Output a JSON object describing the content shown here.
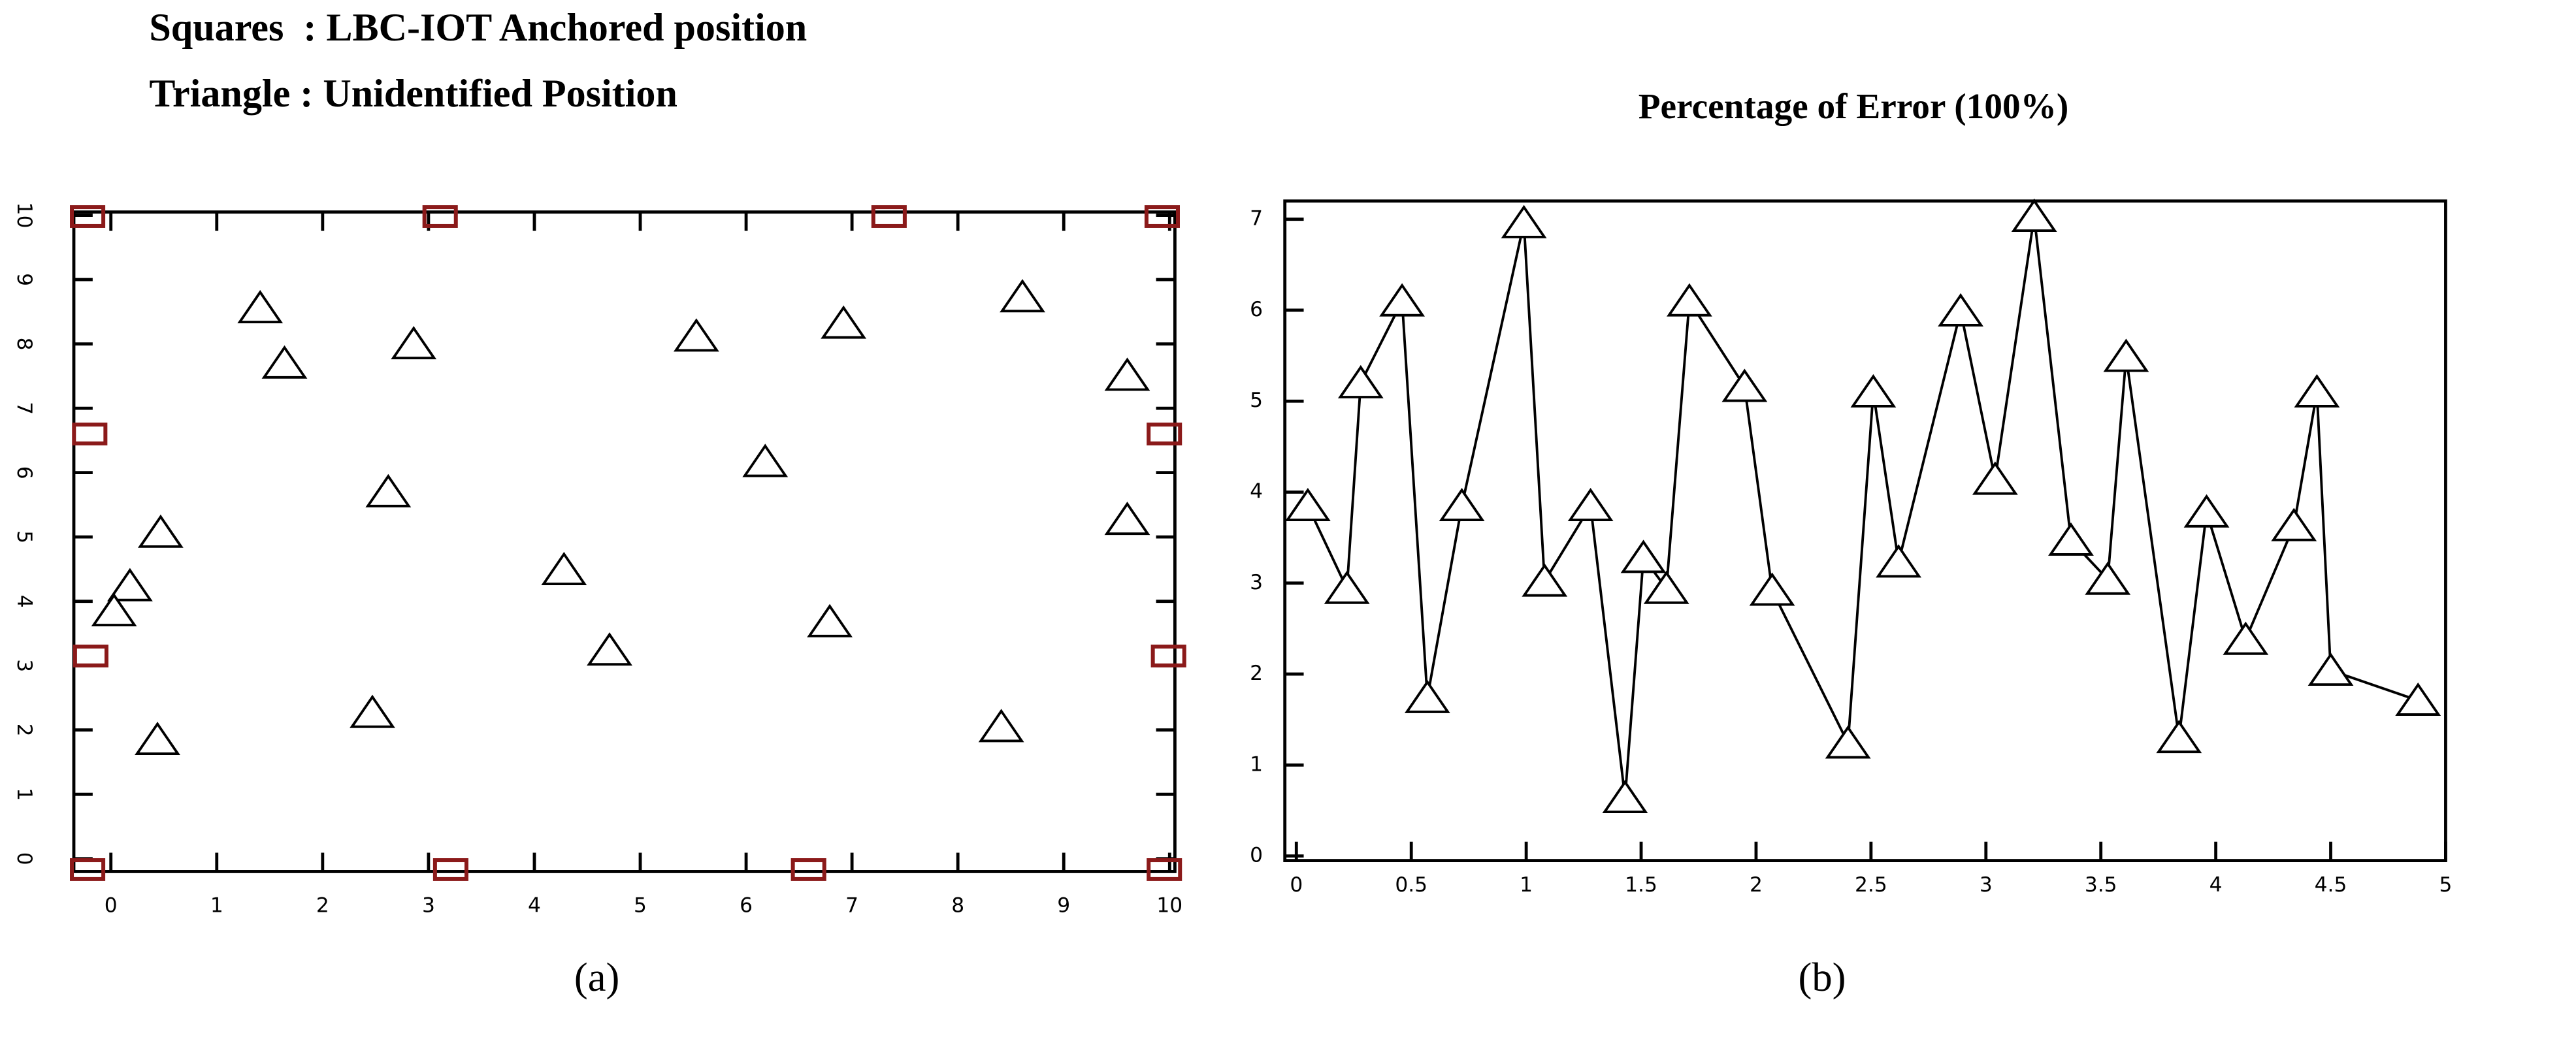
{
  "chart_data": [
    {
      "type": "scatter",
      "caption": "(a)",
      "xlim": [
        -0.35,
        10.05
      ],
      "ylim": [
        -0.2,
        10.05
      ],
      "xticks": [
        0,
        1,
        2,
        3,
        4,
        5,
        6,
        7,
        8,
        9,
        10
      ],
      "yticks": [
        0,
        1,
        2,
        3,
        4,
        5,
        6,
        7,
        8,
        9,
        10
      ],
      "series": [
        {
          "name": "Squares  : LBC-IOT Anchored position",
          "marker": "square",
          "color": "#8b1a1a",
          "x": [
            -0.22,
            3.11,
            7.35,
            9.93,
            -0.2,
            9.95,
            -0.19,
            9.99,
            -0.22,
            3.21,
            6.59,
            9.95
          ],
          "y": [
            9.98,
            9.98,
            9.98,
            9.98,
            6.6,
            6.6,
            3.15,
            3.15,
            -0.17,
            -0.17,
            -0.17,
            -0.17
          ]
        },
        {
          "name": "Triangle : Unidentified Position",
          "marker": "triangle",
          "color": "#000000",
          "x": [
            1.41,
            1.64,
            2.86,
            2.62,
            2.47,
            0.47,
            0.18,
            0.03,
            0.44,
            4.28,
            4.71,
            5.53,
            6.18,
            6.92,
            6.79,
            8.41,
            8.61,
            9.6,
            9.6
          ],
          "y": [
            8.56,
            7.7,
            8.0,
            5.7,
            2.27,
            5.07,
            4.24,
            3.85,
            1.85,
            4.49,
            3.24,
            8.12,
            6.17,
            8.32,
            3.68,
            2.05,
            8.73,
            7.51,
            5.27
          ]
        }
      ]
    },
    {
      "type": "line",
      "title": "Percentage of Error (100%)",
      "caption": "(b)",
      "color": "#000000",
      "marker": "triangle",
      "xlim": [
        -0.05,
        5.0
      ],
      "ylim": [
        -0.05,
        7.2
      ],
      "xticks": [
        0,
        0.5,
        1,
        1.5,
        2,
        2.5,
        3,
        3.5,
        4,
        4.5,
        5
      ],
      "yticks": [
        0,
        1,
        2,
        3,
        4,
        5,
        6,
        7
      ],
      "x": [
        0.05,
        0.22,
        0.28,
        0.46,
        0.57,
        0.72,
        0.99,
        1.08,
        1.28,
        1.43,
        1.51,
        1.61,
        1.71,
        1.95,
        2.07,
        2.4,
        2.51,
        2.62,
        2.89,
        3.04,
        3.21,
        3.37,
        3.53,
        3.61,
        3.84,
        3.96,
        4.13,
        4.34,
        4.44,
        4.5,
        4.88
      ],
      "values": [
        3.85,
        2.94,
        5.2,
        6.1,
        1.74,
        3.85,
        6.96,
        3.02,
        3.85,
        0.64,
        3.28,
        2.94,
        6.1,
        5.16,
        2.92,
        1.24,
        5.1,
        3.23,
        5.99,
        4.14,
        7.03,
        3.47,
        3.04,
        5.49,
        1.3,
        3.78,
        2.38,
        3.63,
        5.1,
        2.04,
        1.71
      ]
    }
  ]
}
